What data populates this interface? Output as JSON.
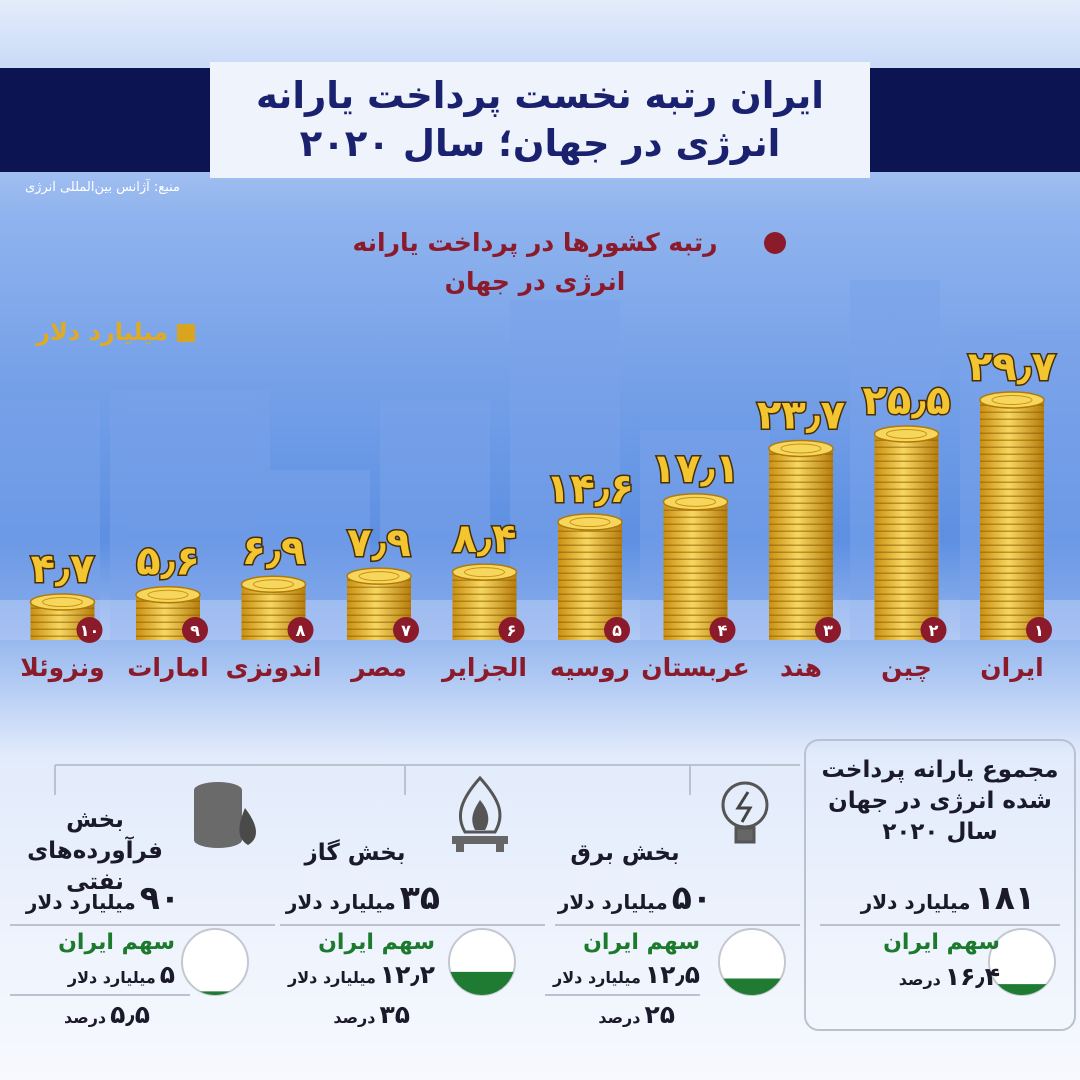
{
  "header": {
    "source": "منبع: آژانس بین‌المللی انرژی"
  },
  "chart_data": {
    "type": "bar",
    "title": "ایران رتبه نخست پرداخت یارانه انرژی در جهان؛ سال ۲۰۲۰",
    "legend": [
      {
        "label": "رتبه کشورها در پرداخت یارانه انرژی در جهان",
        "color": "#8b1a2b"
      },
      {
        "label": "میلیارد دلار",
        "color": "#d9a520"
      }
    ],
    "categories": [
      "ایران",
      "چین",
      "هند",
      "عربستان",
      "روسیه",
      "الجزایر",
      "مصر",
      "اندونزی",
      "امارات",
      "ونزوئلا"
    ],
    "values": [
      29.7,
      25.5,
      23.7,
      17.1,
      14.6,
      8.4,
      7.9,
      6.9,
      5.6,
      4.7
    ],
    "value_labels": [
      "۲۹٫۷",
      "۲۵٫۵",
      "۲۳٫۷",
      "۱۷٫۱",
      "۱۴٫۶",
      "۸٫۴",
      "۷٫۹",
      "۶٫۹",
      "۵٫۶",
      "۴٫۷"
    ],
    "ranks": [
      "۱",
      "۲",
      "۳",
      "۴",
      "۵",
      "۶",
      "۷",
      "۸",
      "۹",
      "۱۰"
    ],
    "color": "#e8b830",
    "rank_color": "#8b1a2b"
  },
  "panels": [
    {
      "title": "مجموع یارانه پرداخت شده انرژی در جهان سال ۲۰۲۰",
      "amount": "۱۸۱",
      "amount_unit": "میلیارد دلار",
      "share_title": "سهم ایران",
      "share_percent": {
        "value": 16.4,
        "label": "۱۶٫۴"
      },
      "percent_unit": "درصد"
    },
    {
      "title": "بخش برق",
      "amount": "۵۰",
      "amount_unit": "میلیارد دلار",
      "share_title": "سهم ایران",
      "share_amount": "۱۲٫۵",
      "share_unit": "میلیارد دلار",
      "share_percent": {
        "value": 25,
        "label": "۲۵"
      },
      "percent_unit": "درصد"
    },
    {
      "title": "بخش گاز",
      "amount": "۳۵",
      "amount_unit": "میلیارد دلار",
      "share_title": "سهم ایران",
      "share_amount": "۱۲٫۲",
      "share_unit": "میلیارد دلار",
      "share_percent": {
        "value": 35,
        "label": "۳۵"
      },
      "percent_unit": "درصد"
    },
    {
      "title": "بخش فرآورده‌های نفتی",
      "amount": "۹۰",
      "amount_unit": "میلیارد دلار",
      "share_title": "سهم ایران",
      "share_amount": "۵",
      "share_unit": "میلیارد دلار",
      "share_percent": {
        "value": 5.5,
        "label": "۵٫۵"
      },
      "percent_unit": "درصد"
    }
  ]
}
